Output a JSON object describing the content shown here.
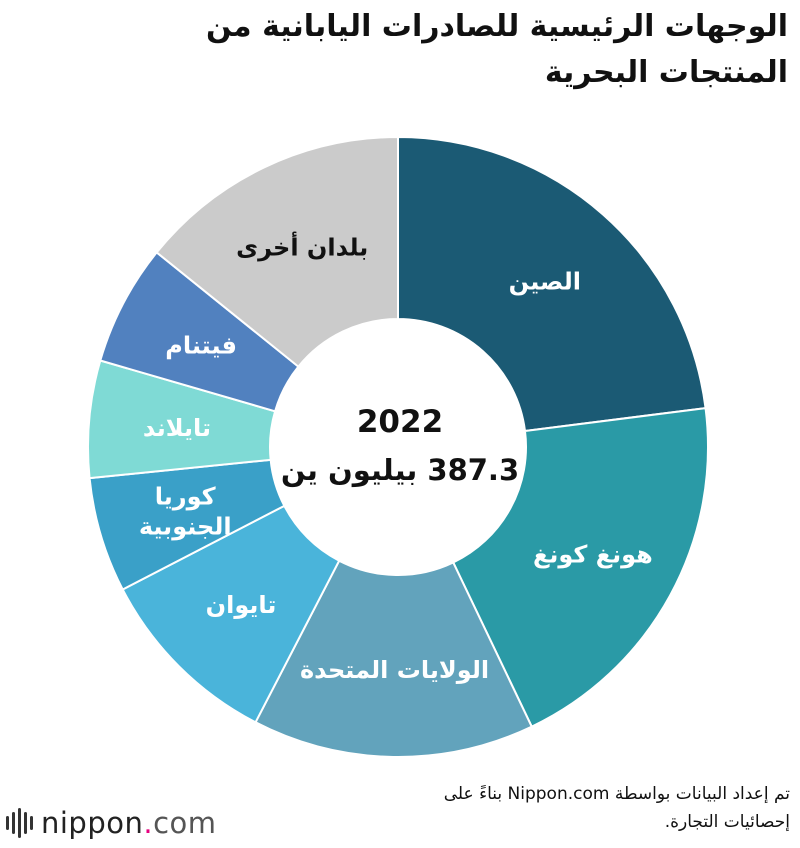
{
  "title": {
    "line1": "الوجهات الرئيسية للصادرات اليابانية من",
    "line2": "المنتجات البحرية"
  },
  "chart_data": {
    "type": "pie",
    "center": {
      "year": "2022",
      "total": "387.3 بيليون ين"
    },
    "categories": [
      "الصين",
      "هونغ كونغ",
      "الولايات المتحدة",
      "تايوان",
      "كوريا الجنوبية",
      "تايلاند",
      "فيتنام",
      "بلدان أخرى"
    ],
    "label_lines": [
      [
        "الصين"
      ],
      [
        "هونغ كونغ"
      ],
      [
        "الولايات المتحدة"
      ],
      [
        "تايوان"
      ],
      [
        "كوريا",
        "الجنوبية"
      ],
      [
        "تايلاند"
      ],
      [
        "فيتنام"
      ],
      [
        "بلدان أخرى"
      ]
    ],
    "values": [
      23.0,
      19.9,
      14.7,
      9.8,
      6.0,
      6.1,
      6.3,
      14.2
    ],
    "colors": [
      "#1b5a74",
      "#2a9aa6",
      "#62a3bc",
      "#4ab4da",
      "#3aa0c8",
      "#7fdad5",
      "#5181bf",
      "#cbcbcb"
    ],
    "label_colors": [
      "#ffffff",
      "#ffffff",
      "#ffffff",
      "#ffffff",
      "#ffffff",
      "#ffffff",
      "#ffffff",
      "#111111"
    ]
  },
  "source": {
    "line1": "تم إعداد البيانات بواسطة Nippon.com بناءً على",
    "line2": "إحصائيات التجارة."
  },
  "logo": {
    "name": "nippon",
    "dot": ".",
    "tld": "com"
  }
}
